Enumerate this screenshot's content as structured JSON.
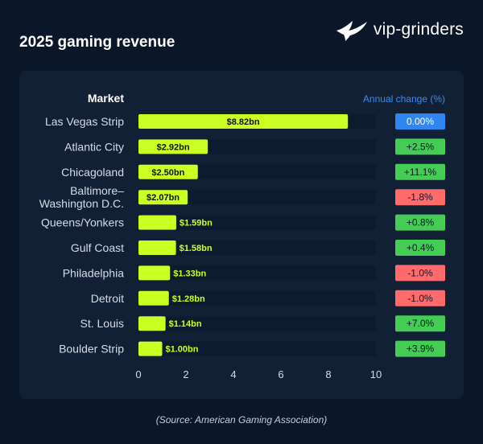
{
  "title": "2025 gaming revenue",
  "logo": {
    "text": "vip-grinders",
    "icon": "hummingbird-icon"
  },
  "source": "(Source: American Gaming Association)",
  "colors": {
    "background": "#0b1628",
    "panel": "#122036",
    "track": "#0e1a2e",
    "bar": "#ccff22",
    "positive": "#44cc55",
    "negative": "#ff6b6b",
    "neutral": "#2f86f0",
    "accent": "#3b8cf0"
  },
  "chart_data": {
    "type": "bar",
    "orientation": "horizontal",
    "category_header": "Market",
    "change_header": "Annual change (%)",
    "xlim": [
      0,
      10
    ],
    "ticks": [
      "0",
      "2",
      "4",
      "6",
      "8",
      "10"
    ],
    "categories": [
      [
        "Las Vegas Strip"
      ],
      [
        "Atlantic City"
      ],
      [
        "Chicagoland"
      ],
      [
        "Baltimore–",
        "Washington D.C."
      ],
      [
        "Queens/Yonkers"
      ],
      [
        "Gulf Coast"
      ],
      [
        "Philadelphia"
      ],
      [
        "Detroit"
      ],
      [
        "St. Louis"
      ],
      [
        "Boulder Strip"
      ]
    ],
    "values": [
      8.82,
      2.92,
      2.5,
      2.07,
      1.59,
      1.58,
      1.33,
      1.28,
      1.14,
      1.0
    ],
    "value_labels": [
      "$8.82bn",
      "$2.92bn",
      "$2.50bn",
      "$2.07bn",
      "$1.59bn",
      "$1.58bn",
      "$1.33bn",
      "$1.28bn",
      "$1.14bn",
      "$1.00bn"
    ],
    "annual_change": [
      "0.00%",
      "+2.5%",
      "+11.1%",
      "-1.8%",
      "+0.8%",
      "+0.4%",
      "-1.0%",
      "-1.0%",
      "+7.0%",
      "+3.9%"
    ],
    "annual_change_values": [
      0.0,
      2.5,
      11.1,
      -1.8,
      0.8,
      0.4,
      -1.0,
      -1.0,
      7.0,
      3.9
    ],
    "grid": false,
    "legend": "none"
  }
}
